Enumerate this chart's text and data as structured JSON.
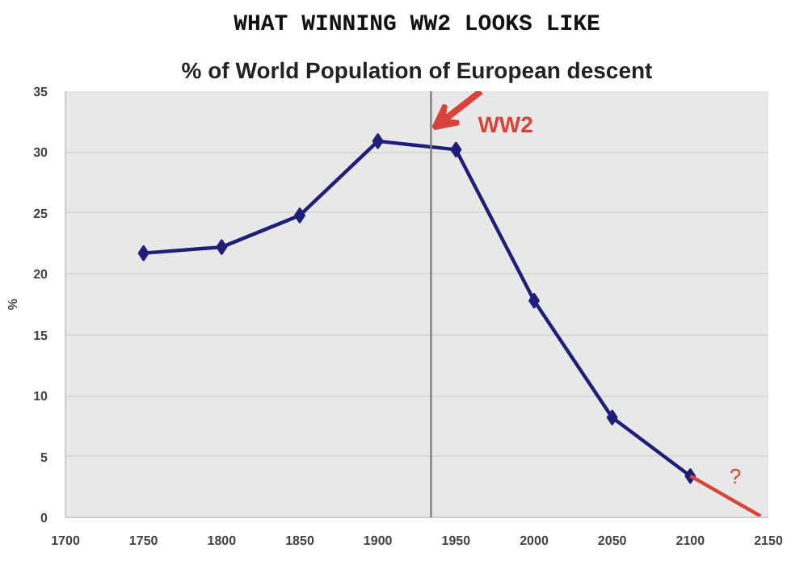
{
  "chart_data": {
    "type": "line",
    "title": "WHAT WINNING WW2 LOOKS LIKE",
    "subtitle": "% of World Population of European descent",
    "ylabel": "%",
    "x": [
      1750,
      1800,
      1850,
      1900,
      1950,
      2000,
      2050,
      2100
    ],
    "series": [
      {
        "color": "#1f1f7a",
        "values": [
          21.7,
          22.2,
          24.8,
          30.9,
          30.2,
          17.8,
          8.2,
          3.4
        ]
      },
      {
        "color": "#d9443a",
        "x": [
          2100,
          2145
        ],
        "values": [
          3.4,
          0.1
        ],
        "marker": "none"
      }
    ],
    "xlim": [
      1700,
      2150
    ],
    "xticks": [
      1700,
      1750,
      1800,
      1850,
      1900,
      1950,
      2000,
      2050,
      2100,
      2150
    ],
    "ylim": [
      0,
      35
    ],
    "yticks": [
      0,
      5,
      10,
      15,
      20,
      25,
      30,
      35
    ],
    "ref_lines": [
      {
        "axis": "x",
        "value": 1934,
        "color": "#808080"
      }
    ],
    "annotations": [
      {
        "text": "WW2",
        "x": 1934,
        "y": 31.7
      },
      {
        "text": "?",
        "x": 2125,
        "y": 2.4
      }
    ],
    "marker": "diamond",
    "grid": "y",
    "line_style": "solid"
  }
}
